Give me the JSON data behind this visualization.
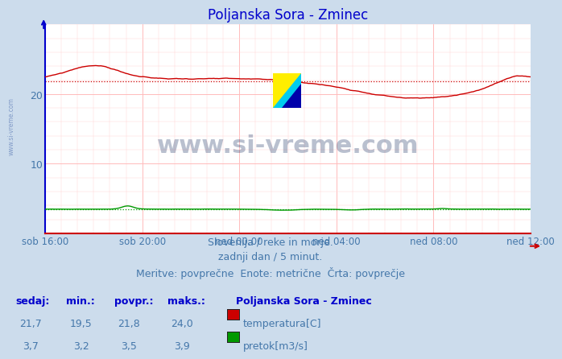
{
  "title": "Poljanska Sora - Zminec",
  "title_color": "#0000cc",
  "bg_color": "#ccdcec",
  "plot_bg_color": "#ffffff",
  "grid_color_major": "#ffbbbb",
  "grid_color_minor": "#ffd8d8",
  "axis_left_color": "#0000cc",
  "axis_bottom_color": "#cc0000",
  "xlabel_color": "#4477aa",
  "ylabel_color": "#4477aa",
  "x_tick_labels": [
    "sob 16:00",
    "sob 20:00",
    "ned 00:00",
    "ned 04:00",
    "ned 08:00",
    "ned 12:00"
  ],
  "x_tick_positions": [
    0,
    48,
    96,
    144,
    192,
    240
  ],
  "ylim": [
    0,
    30
  ],
  "yticks": [
    10,
    20
  ],
  "num_points": 289,
  "temp_color": "#cc0000",
  "flow_color": "#009900",
  "avg_temp": 21.8,
  "avg_flow": 3.5,
  "min_temp": 19.5,
  "max_temp": 24.0,
  "cur_temp": 21.7,
  "min_flow": 3.2,
  "max_flow": 3.9,
  "cur_flow": 3.7,
  "watermark": "www.si-vreme.com",
  "watermark_color": "#1a3060",
  "watermark_alpha": 0.3,
  "footer_line1": "Slovenija / reke in morje.",
  "footer_line2": "zadnji dan / 5 minut.",
  "footer_line3": "Meritve: povprečne  Enote: metrične  Črta: povprečje",
  "footer_color": "#4477aa",
  "legend_title": "Poljanska Sora - Zminec",
  "legend_title_color": "#0000cc",
  "label_temp": "temperatura[C]",
  "label_flow": "pretok[m3/s]",
  "table_headers": [
    "sedaj:",
    "min.:",
    "povpr.:",
    "maks.:"
  ],
  "temp_row": [
    "21,7",
    "19,5",
    "21,8",
    "24,0"
  ],
  "flow_row": [
    "3,7",
    "3,2",
    "3,5",
    "3,9"
  ],
  "left_watermark": "www.si-vreme.com",
  "left_wm_color": "#4466aa",
  "logo_yellow": "#ffee00",
  "logo_cyan": "#00ccee",
  "logo_blue": "#0000aa"
}
